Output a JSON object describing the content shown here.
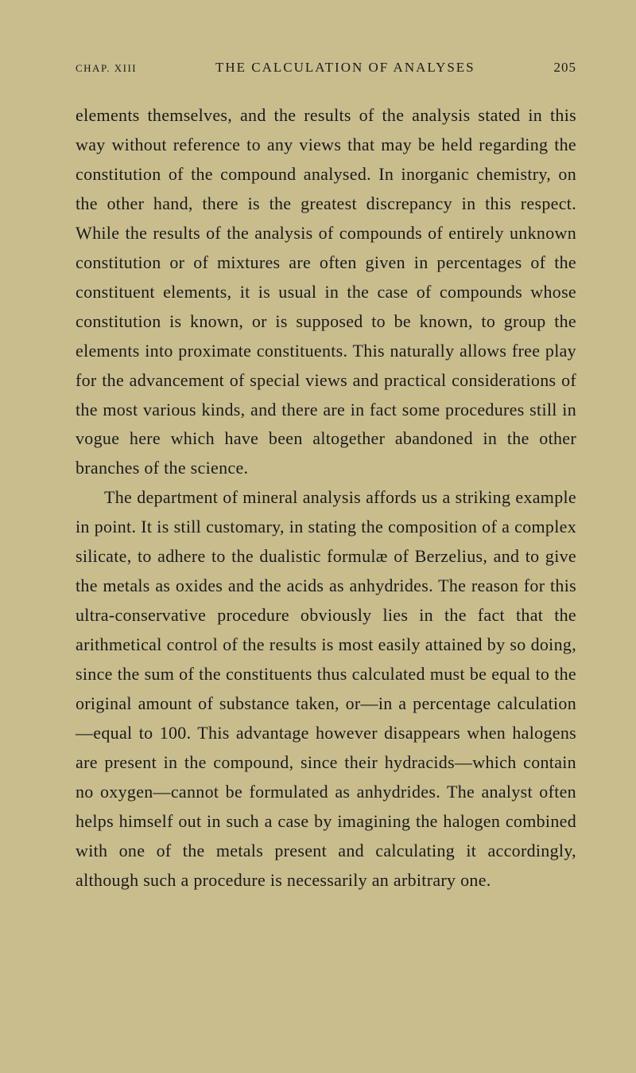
{
  "header": {
    "chapter": "CHAP. XIII",
    "title": "THE CALCULATION OF ANALYSES",
    "pageNumber": "205"
  },
  "paragraphs": [
    {
      "text": "elements themselves, and the results of the analysis stated in this way without reference to any views that may be held regarding the constitution of the compound analysed. In inorganic chemistry, on the other hand, there is the greatest discrepancy in this respect. While the results of the analysis of compounds of entirely unknown constitution or of mixtures are often given in percentages of the constituent elements, it is usual in the case of compounds whose constitution is known, or is supposed to be known, to group the elements into proximate constituents. This naturally allows free play for the advancement of special views and practical considerations of the most various kinds, and there are in fact some procedures still in vogue here which have been altogether abandoned in the other branches of the science.",
      "indent": false
    },
    {
      "text": "The department of mineral analysis affords us a striking example in point. It is still customary, in stating the composition of a complex silicate, to adhere to the dualistic formulæ of Berzelius, and to give the metals as oxides and the acids as anhydrides. The reason for this ultra-conservative procedure obviously lies in the fact that the arithmetical control of the results is most easily attained by so doing, since the sum of the constituents thus calculated must be equal to the original amount of substance taken, or—in a percentage calculation—equal to 100. This advantage however disappears when halogens are present in the compound, since their hydracids—which contain no oxygen—cannot be formulated as anhydrides. The analyst often helps himself out in such a case by imagining the halogen combined with one of the metals present and calculating it accordingly, although such a procedure is necessarily an arbitrary one.",
      "indent": true
    }
  ],
  "colors": {
    "background": "#c9bd8e",
    "text": "#1a1a1a"
  },
  "typography": {
    "body_fontsize": 22,
    "header_fontsize": 17,
    "chapter_fontsize": 13,
    "line_height": 1.68,
    "font_family": "Georgia, Times New Roman, serif"
  }
}
